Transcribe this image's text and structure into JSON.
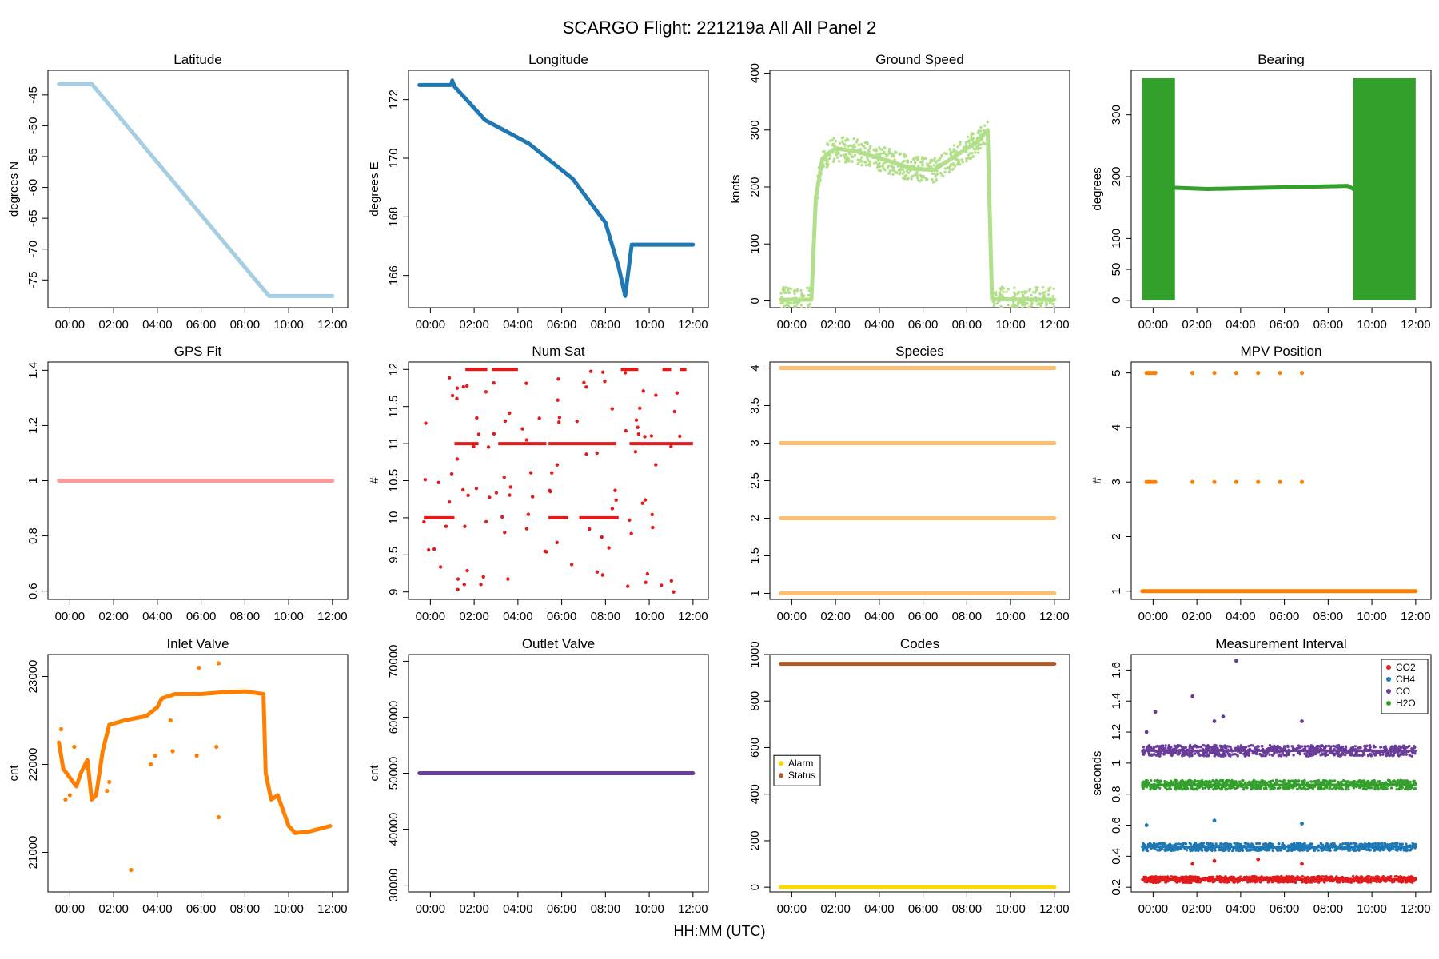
{
  "figure": {
    "title": "SCARGO Flight: 221219a  All All  Panel 2",
    "xlabel": "HH:MM (UTC)"
  },
  "chart_data": [
    {
      "id": "lat",
      "type": "scatter",
      "title": "Latitude",
      "ylabel": "degrees N",
      "ylim": [
        -79.5,
        -41
      ],
      "yticks": [
        -45,
        -50,
        -55,
        -60,
        -65,
        -70,
        -75
      ],
      "color": "#a6cee3",
      "segments": [
        [
          [
            -0.5,
            -43.2
          ],
          [
            1.0,
            -43.2
          ],
          [
            9.1,
            -77.6
          ],
          [
            12.0,
            -77.6
          ]
        ]
      ]
    },
    {
      "id": "lon",
      "type": "scatter",
      "title": "Longitude",
      "ylabel": "degrees E",
      "ylim": [
        164.9,
        173.0
      ],
      "yticks": [
        166,
        168,
        170,
        172
      ],
      "color": "#1f78b4",
      "segments": [
        [
          [
            -0.5,
            172.5
          ],
          [
            0.95,
            172.5
          ],
          [
            1.0,
            172.65
          ],
          [
            1.1,
            172.45
          ],
          [
            2.5,
            171.3
          ],
          [
            4.5,
            170.5
          ],
          [
            6.5,
            169.3
          ],
          [
            8.0,
            167.8
          ],
          [
            8.6,
            166.3
          ],
          [
            8.9,
            165.3
          ],
          [
            9.2,
            167.05
          ],
          [
            12.0,
            167.05
          ]
        ]
      ]
    },
    {
      "id": "gs",
      "type": "scatter",
      "title": "Ground Speed",
      "ylabel": "knots",
      "ylim": [
        -12,
        405
      ],
      "yticks": [
        0,
        100,
        200,
        300,
        400
      ],
      "color": "#b2df8a",
      "segments": [
        [
          [
            -0.5,
            2
          ],
          [
            0.9,
            2
          ],
          [
            1.1,
            180
          ],
          [
            1.4,
            250
          ],
          [
            2.0,
            268
          ],
          [
            3.0,
            262
          ],
          [
            4.5,
            245
          ],
          [
            5.5,
            232
          ],
          [
            6.5,
            230
          ],
          [
            7.5,
            255
          ],
          [
            8.5,
            280
          ],
          [
            8.95,
            300
          ],
          [
            9.15,
            3
          ],
          [
            12.0,
            2
          ]
        ]
      ],
      "noise": 22
    },
    {
      "id": "brg",
      "type": "scatter",
      "title": "Bearing",
      "ylabel": "degrees",
      "ylim": [
        -12,
        372
      ],
      "yticks": [
        0,
        50,
        100,
        200,
        300
      ],
      "color": "#33a02c",
      "blocks": [
        [
          -0.5,
          1.0,
          0,
          360
        ],
        [
          9.15,
          12.0,
          0,
          360
        ]
      ],
      "segments": [
        [
          [
            1.0,
            182
          ],
          [
            2.5,
            180
          ],
          [
            8.9,
            185
          ],
          [
            9.15,
            180
          ]
        ]
      ]
    },
    {
      "id": "gps",
      "type": "scatter",
      "title": "GPS Fit",
      "ylabel": "",
      "ylim": [
        0.57,
        1.43
      ],
      "yticks": [
        0.6,
        0.8,
        1.0,
        1.2,
        1.4
      ],
      "color": "#fb9a99",
      "segments": [
        [
          [
            -0.5,
            1.0
          ],
          [
            12.0,
            1.0
          ]
        ]
      ]
    },
    {
      "id": "sat",
      "type": "scatter",
      "title": "Num Sat",
      "ylabel": "#",
      "ylim": [
        8.9,
        12.1
      ],
      "yticks": [
        9.0,
        9.5,
        10.0,
        10.5,
        11.0,
        11.5,
        12.0
      ],
      "color": "#e31a1c",
      "levels": [
        [
          -0.3,
          1.1,
          10
        ],
        [
          1.1,
          2.2,
          11
        ],
        [
          1.6,
          2.6,
          12
        ],
        [
          2.8,
          4.0,
          12
        ],
        [
          3.1,
          5.3,
          11
        ],
        [
          5.4,
          6.3,
          10
        ],
        [
          5.4,
          8.5,
          11
        ],
        [
          6.8,
          8.6,
          10
        ],
        [
          8.7,
          9.5,
          12
        ],
        [
          9.1,
          12.0,
          11
        ],
        [
          10.6,
          11.0,
          12
        ],
        [
          11.4,
          11.7,
          12
        ]
      ]
    },
    {
      "id": "spec",
      "type": "scatter",
      "title": "Species",
      "ylabel": "",
      "ylim": [
        0.92,
        4.08
      ],
      "yticks": [
        1.0,
        1.5,
        2.0,
        2.5,
        3.0,
        3.5,
        4.0
      ],
      "color": "#fdbf6f",
      "segments": [
        [
          [
            -0.5,
            1
          ],
          [
            12,
            1
          ]
        ],
        [
          [
            -0.5,
            2
          ],
          [
            12,
            2
          ]
        ],
        [
          [
            -0.5,
            3
          ],
          [
            12,
            3
          ]
        ],
        [
          [
            -0.5,
            4
          ],
          [
            12,
            4
          ]
        ]
      ]
    },
    {
      "id": "mpv",
      "type": "scatter",
      "title": "MPV Position",
      "ylabel": "#",
      "ylim": [
        0.85,
        5.2
      ],
      "yticks": [
        1,
        2,
        3,
        4,
        5
      ],
      "color": "#ff7f00",
      "segments": [
        [
          [
            -0.5,
            1
          ],
          [
            12,
            1
          ]
        ]
      ],
      "points": [
        [
          -0.3,
          3
        ],
        [
          -0.2,
          3
        ],
        [
          -0.1,
          3
        ],
        [
          0.0,
          3
        ],
        [
          0.1,
          3
        ],
        [
          1.8,
          3
        ],
        [
          2.8,
          3
        ],
        [
          3.8,
          3
        ],
        [
          4.8,
          3
        ],
        [
          5.8,
          3
        ],
        [
          6.8,
          3
        ],
        [
          -0.3,
          5
        ],
        [
          -0.2,
          5
        ],
        [
          -0.1,
          5
        ],
        [
          0.0,
          5
        ],
        [
          0.1,
          5
        ],
        [
          1.8,
          5
        ],
        [
          2.8,
          5
        ],
        [
          3.8,
          5
        ],
        [
          4.8,
          5
        ],
        [
          5.8,
          5
        ],
        [
          6.8,
          5
        ]
      ]
    },
    {
      "id": "inlet",
      "type": "scatter",
      "title": "Inlet Valve",
      "ylabel": "cnt",
      "ylim": [
        20550,
        23250
      ],
      "yticks": [
        21000,
        22000,
        23000
      ],
      "color": "#ff7f00",
      "segments": [
        [
          [
            -0.5,
            22250
          ],
          [
            -0.3,
            21950
          ],
          [
            0.0,
            21850
          ],
          [
            0.3,
            21750
          ],
          [
            0.5,
            21900
          ],
          [
            0.8,
            22050
          ],
          [
            1.0,
            21600
          ],
          [
            1.2,
            21650
          ],
          [
            1.5,
            22150
          ],
          [
            1.8,
            22450
          ],
          [
            2.5,
            22500
          ],
          [
            3.5,
            22550
          ],
          [
            4.0,
            22650
          ],
          [
            4.2,
            22750
          ],
          [
            4.8,
            22800
          ],
          [
            6.0,
            22800
          ],
          [
            7.0,
            22820
          ],
          [
            8.0,
            22830
          ],
          [
            8.85,
            22800
          ],
          [
            8.95,
            21900
          ],
          [
            9.2,
            21600
          ],
          [
            9.5,
            21650
          ],
          [
            10.0,
            21300
          ],
          [
            10.3,
            21220
          ],
          [
            11.0,
            21240
          ],
          [
            11.9,
            21300
          ]
        ]
      ],
      "points": [
        [
          -0.4,
          22400
        ],
        [
          -0.2,
          21600
        ],
        [
          0.0,
          21650
        ],
        [
          0.2,
          22200
        ],
        [
          1.7,
          21700
        ],
        [
          1.8,
          21800
        ],
        [
          2.8,
          20800
        ],
        [
          3.7,
          22000
        ],
        [
          3.9,
          22100
        ],
        [
          5.9,
          23100
        ],
        [
          5.8,
          22100
        ],
        [
          6.8,
          23150
        ],
        [
          6.8,
          21400
        ],
        [
          6.7,
          22200
        ],
        [
          4.7,
          22150
        ],
        [
          4.6,
          22500
        ]
      ]
    },
    {
      "id": "outlet",
      "type": "scatter",
      "title": "Outlet Valve",
      "ylabel": "cnt",
      "ylim": [
        28800,
        71200
      ],
      "yticks": [
        30000,
        40000,
        50000,
        60000,
        70000
      ],
      "color": "#6a3d9a",
      "segments": [
        [
          [
            -0.5,
            50000
          ],
          [
            12.0,
            50000
          ]
        ]
      ]
    },
    {
      "id": "codes",
      "type": "scatter",
      "title": "Codes",
      "ylabel": "",
      "ylim": [
        -20,
        1000
      ],
      "yticks": [
        0,
        200,
        400,
        600,
        800,
        1000
      ],
      "color": "#b15928",
      "series": [
        {
          "name": "Alarm",
          "color": "#ffd700",
          "segments": [
            [
              [
                -0.5,
                0
              ],
              [
                12,
                0
              ]
            ]
          ]
        },
        {
          "name": "Status",
          "color": "#b15928",
          "segments": [
            [
              [
                -0.5,
                960
              ],
              [
                12,
                960
              ]
            ]
          ]
        }
      ],
      "legend": [
        {
          "label": "Alarm",
          "color": "#ffd700"
        },
        {
          "label": "Status",
          "color": "#b15928"
        }
      ],
      "legend_position": "left"
    },
    {
      "id": "mi",
      "type": "scatter",
      "title": "Measurement Interval",
      "ylabel": "seconds",
      "ylim": [
        0.17,
        1.7
      ],
      "yticks": [
        0.2,
        0.4,
        0.6,
        0.8,
        1.0,
        1.2,
        1.4,
        1.6
      ],
      "series": [
        {
          "name": "CO2",
          "color": "#e31a1c",
          "segments": [
            [
              [
                -0.5,
                0.25
              ],
              [
                12,
                0.25
              ]
            ]
          ],
          "noise": 0.02
        },
        {
          "name": "CH4",
          "color": "#1f78b4",
          "segments": [
            [
              [
                -0.5,
                0.46
              ],
              [
                12,
                0.46
              ]
            ]
          ],
          "noise": 0.025
        },
        {
          "name": "CO",
          "color": "#6a3d9a",
          "segments": [
            [
              [
                -0.5,
                1.08
              ],
              [
                12,
                1.08
              ]
            ]
          ],
          "noise": 0.035
        },
        {
          "name": "H2O",
          "color": "#33a02c",
          "segments": [
            [
              [
                -0.5,
                0.86
              ],
              [
                12,
                0.86
              ]
            ]
          ],
          "noise": 0.03
        }
      ],
      "legend": [
        {
          "label": "CO2",
          "color": "#e31a1c"
        },
        {
          "label": "CH4",
          "color": "#1f78b4"
        },
        {
          "label": "CO",
          "color": "#6a3d9a"
        },
        {
          "label": "H2O",
          "color": "#33a02c"
        }
      ],
      "legend_position": "top-right"
    }
  ],
  "xaxis": {
    "range": [
      -1.0,
      12.7
    ],
    "ticks": [
      0,
      2,
      4,
      6,
      8,
      10,
      12
    ],
    "ticklabels": [
      "00:00",
      "02:00",
      "04:00",
      "06:00",
      "08:00",
      "10:00",
      "12:00"
    ]
  }
}
